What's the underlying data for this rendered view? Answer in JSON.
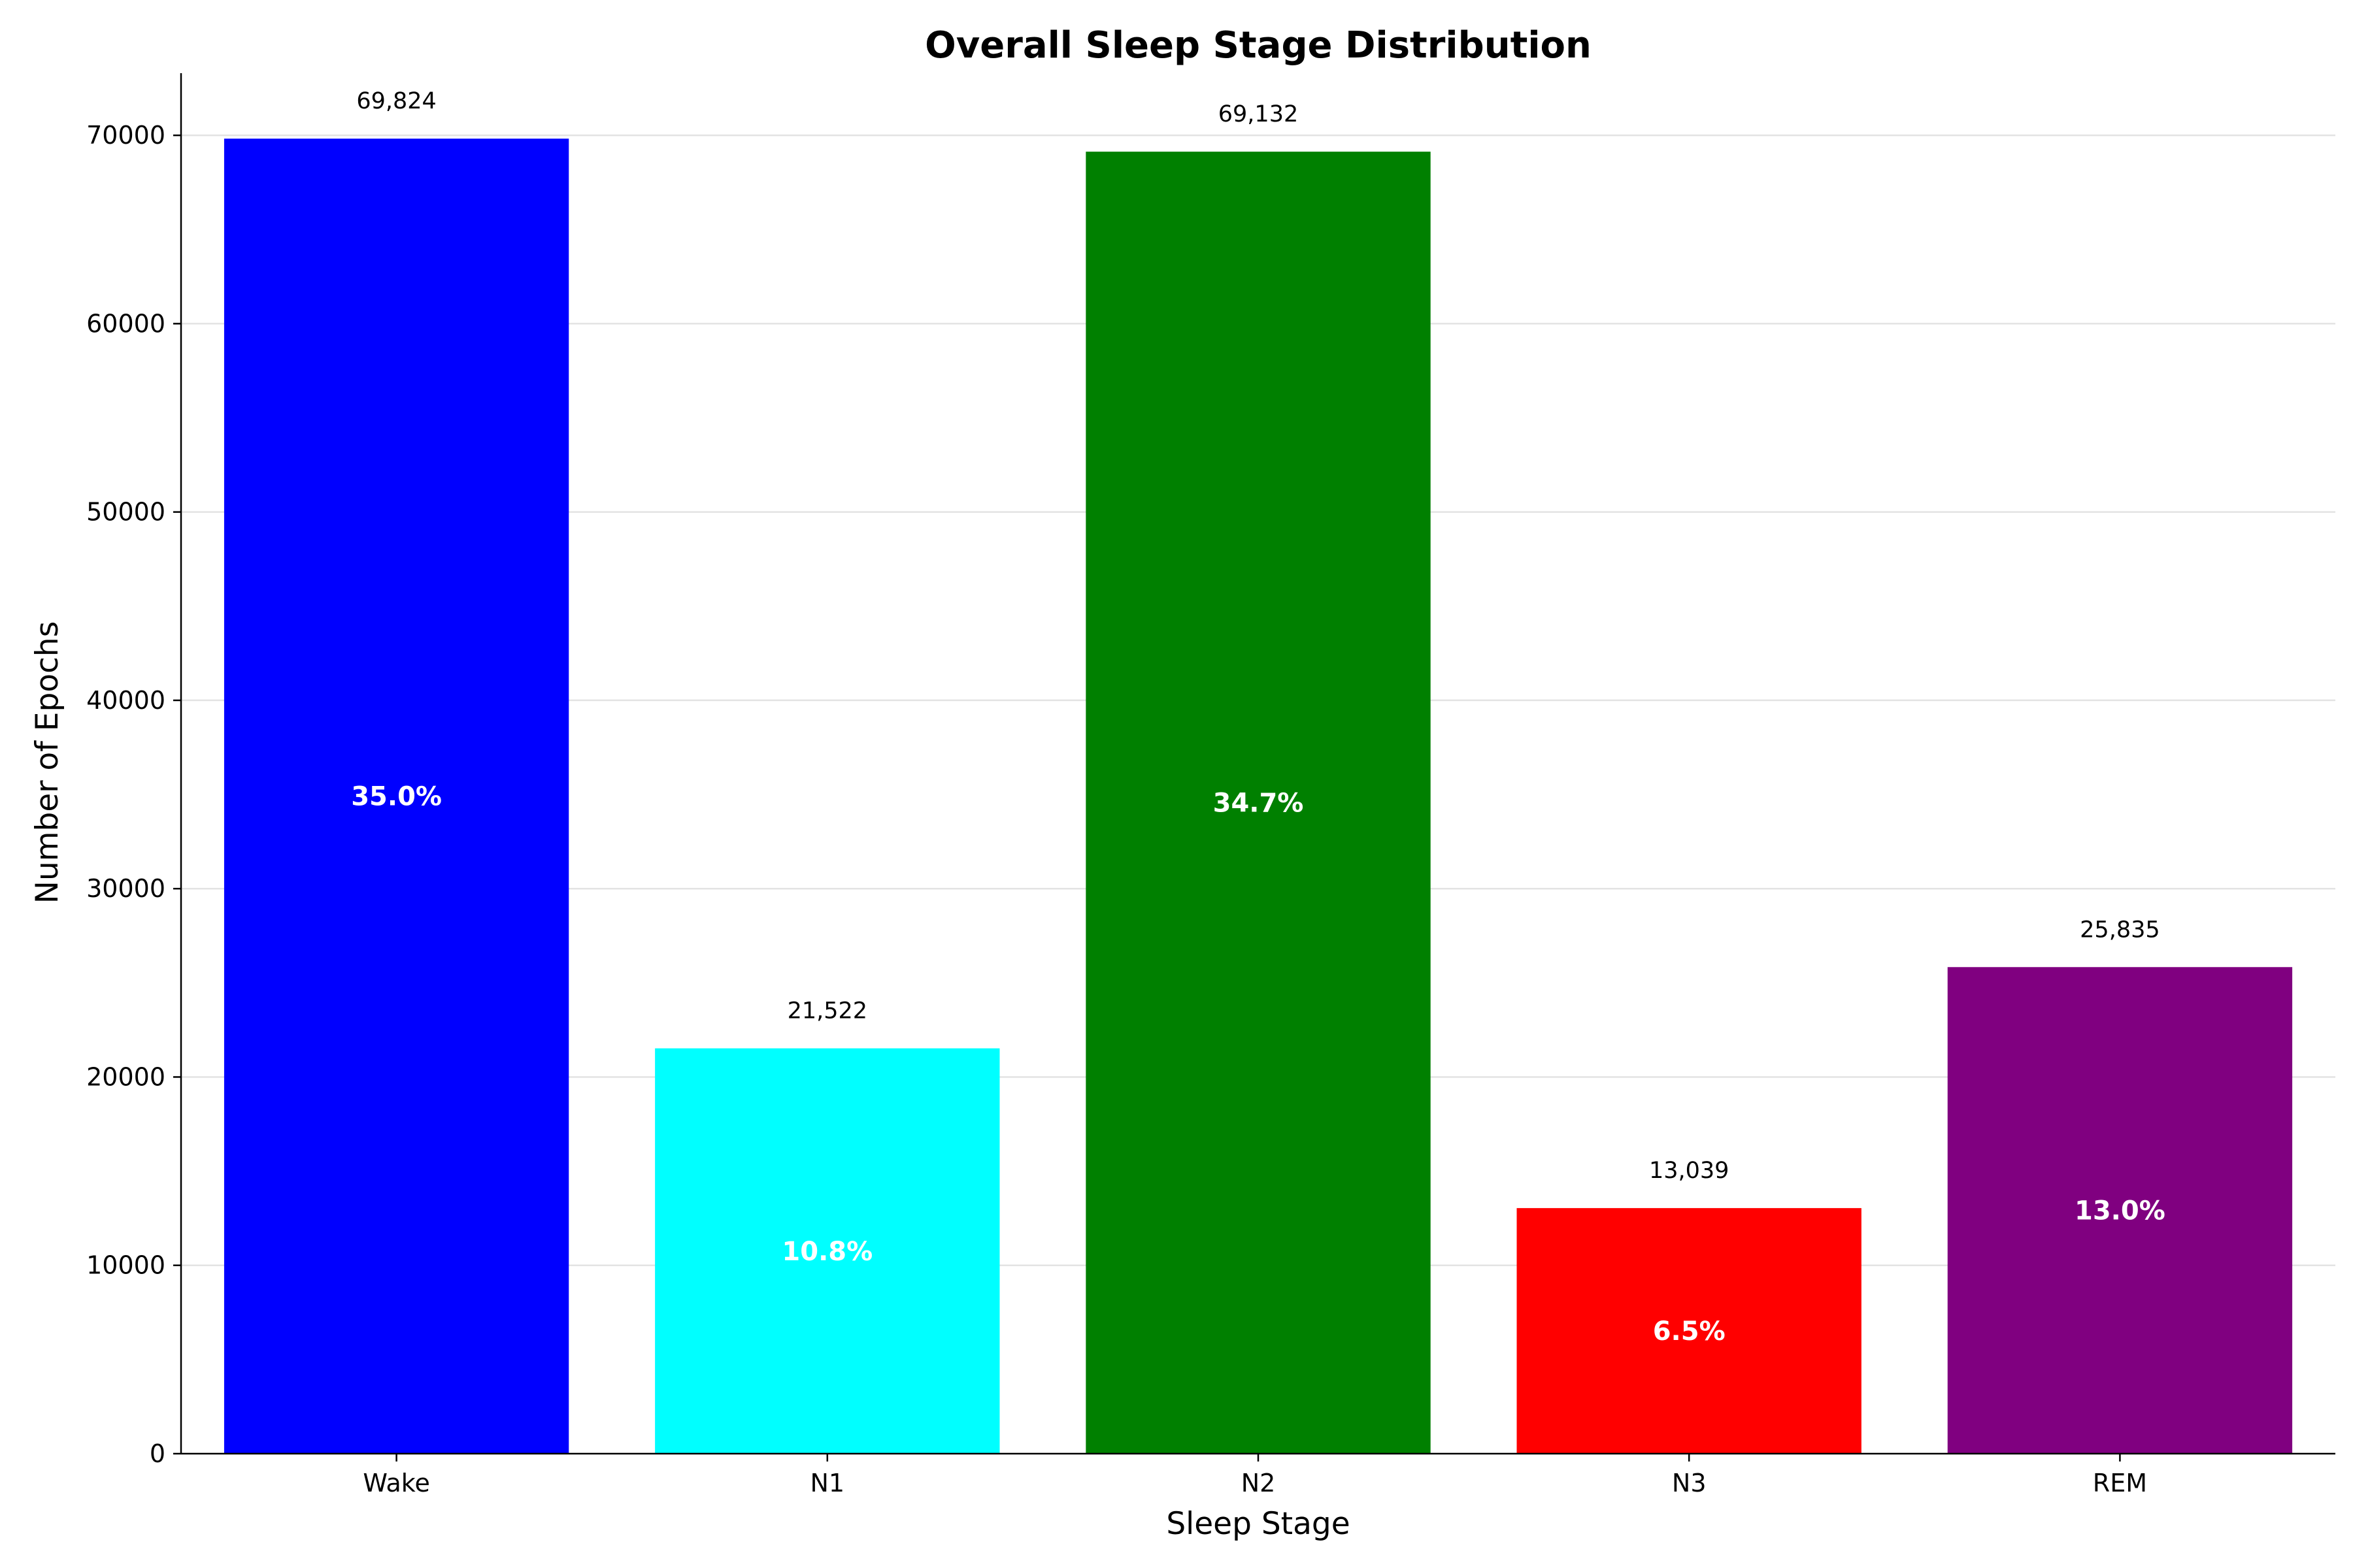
{
  "chart_data": {
    "type": "bar",
    "title": "Overall Sleep Stage Distribution",
    "xlabel": "Sleep Stage",
    "ylabel": "Number of Epochs",
    "categories": [
      "Wake",
      "N1",
      "N2",
      "N3",
      "REM"
    ],
    "values": [
      69824,
      21522,
      69132,
      13039,
      25835
    ],
    "value_labels": [
      "69,824",
      "21,522",
      "69,132",
      "13,039",
      "25,835"
    ],
    "percent_labels": [
      "35.0%",
      "10.8%",
      "34.7%",
      "6.5%",
      "13.0%"
    ],
    "colors": [
      "#0000ff",
      "#00ffff",
      "#008000",
      "#ff0000",
      "#800080"
    ],
    "ylim": [
      0,
      73300
    ],
    "yticks": [
      0,
      10000,
      20000,
      30000,
      40000,
      50000,
      60000,
      70000
    ],
    "grid": "y-major",
    "legend": "none"
  }
}
